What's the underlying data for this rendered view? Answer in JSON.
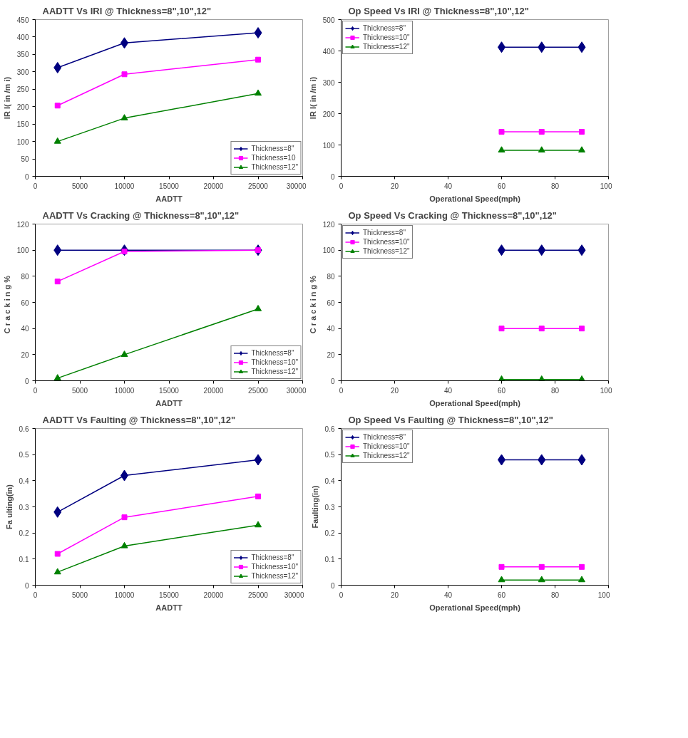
{
  "chart_data": [
    {
      "type": "line",
      "title": "AADTT Vs IRI @ Thickness=8\",10\",12\"",
      "xlabel": "AADTT",
      "ylabel": "IR I( in /m i)",
      "x": [
        2500,
        10000,
        25000
      ],
      "xlim": [
        0,
        30000
      ],
      "xticks": [
        0,
        5000,
        10000,
        15000,
        20000,
        25000,
        30000
      ],
      "ylim": [
        0,
        450
      ],
      "yticks": [
        0,
        50,
        100,
        150,
        200,
        250,
        300,
        350,
        400,
        450
      ],
      "grid": false,
      "legend": "bottom right",
      "series": [
        {
          "name": "Thickness=8\"",
          "color": "#000080",
          "marker": "diamond",
          "values": [
            312,
            383,
            412
          ]
        },
        {
          "name": "Thickness=10",
          "color": "#ff00ff",
          "marker": "square",
          "values": [
            203,
            293,
            335
          ]
        },
        {
          "name": "Thickness=12\"",
          "color": "#008000",
          "marker": "triangle",
          "values": [
            100,
            167,
            238
          ]
        }
      ]
    },
    {
      "type": "line",
      "title": "Op Speed Vs IRI @ Thickness=8\",10\",12\"",
      "xlabel": "Operational Speed(mph)",
      "ylabel": "IR I( in /m i)",
      "x": [
        60,
        75,
        90
      ],
      "xlim": [
        0,
        100
      ],
      "xticks": [
        0,
        20,
        40,
        60,
        80,
        100
      ],
      "ylim": [
        0,
        500
      ],
      "yticks": [
        0,
        100,
        200,
        300,
        400,
        500
      ],
      "grid": false,
      "legend": "top left",
      "series": [
        {
          "name": "Thickness=8\"",
          "color": "#000080",
          "marker": "diamond",
          "values": [
            412,
            412,
            412
          ]
        },
        {
          "name": "Thickness=10\"",
          "color": "#ff00ff",
          "marker": "square",
          "values": [
            142,
            142,
            142
          ]
        },
        {
          "name": "Thickness=12\"",
          "color": "#008000",
          "marker": "triangle",
          "values": [
            83,
            83,
            83
          ]
        }
      ]
    },
    {
      "type": "line",
      "title": "AADTT Vs Cracking @ Thickness=8\",10\",12\"",
      "xlabel": "AADTT",
      "ylabel": "C r a c k i n g   %",
      "x": [
        2500,
        10000,
        25000
      ],
      "xlim": [
        0,
        30000
      ],
      "xticks": [
        0,
        5000,
        10000,
        15000,
        20000,
        25000,
        30000
      ],
      "ylim": [
        0,
        120
      ],
      "yticks": [
        0,
        20,
        40,
        60,
        80,
        100,
        120
      ],
      "grid": false,
      "legend": "bottom right",
      "series": [
        {
          "name": "Thickness=8\"",
          "color": "#000080",
          "marker": "diamond",
          "values": [
            100,
            100,
            100
          ]
        },
        {
          "name": "Thickness=10\"",
          "color": "#ff00ff",
          "marker": "square",
          "values": [
            76,
            99,
            100
          ]
        },
        {
          "name": "Thickness=12\"",
          "color": "#008000",
          "marker": "triangle",
          "values": [
            2,
            20,
            55
          ]
        }
      ]
    },
    {
      "type": "line",
      "title": "Op Speed Vs Cracking @ Thickness=8\",10\",12\"",
      "xlabel": "Operational Speed(mph)",
      "ylabel": "C r a c k i n g   %",
      "x": [
        60,
        75,
        90
      ],
      "xlim": [
        0,
        100
      ],
      "xticks": [
        0,
        20,
        40,
        60,
        80,
        100
      ],
      "ylim": [
        0,
        120
      ],
      "yticks": [
        0,
        20,
        40,
        60,
        80,
        100,
        120
      ],
      "grid": false,
      "legend": "top left",
      "series": [
        {
          "name": "Thickness=8\"",
          "color": "#000080",
          "marker": "diamond",
          "values": [
            100,
            100,
            100
          ]
        },
        {
          "name": "Thickness=10\"",
          "color": "#ff00ff",
          "marker": "square",
          "values": [
            40,
            40,
            40
          ]
        },
        {
          "name": "Thickness=12\"",
          "color": "#008000",
          "marker": "triangle",
          "values": [
            1,
            1,
            1
          ]
        }
      ]
    },
    {
      "type": "line",
      "title": "AADTT Vs Faulting @ Thickness=8\",10\",12\"",
      "xlabel": "AADTT",
      "ylabel": "Fa ulting(in)",
      "x": [
        2500,
        10000,
        25000
      ],
      "xlim": [
        0,
        30000
      ],
      "xticks": [
        0,
        5000,
        10000,
        15000,
        20000,
        25000,
        30000
      ],
      "ylim": [
        0,
        0.6
      ],
      "yticks": [
        0,
        0.1,
        0.2,
        0.3,
        0.4,
        0.5,
        0.6
      ],
      "grid": false,
      "legend": "bottom right",
      "series": [
        {
          "name": "Thickness=8\"",
          "color": "#000080",
          "marker": "diamond",
          "values": [
            0.28,
            0.42,
            0.48
          ]
        },
        {
          "name": "Thickness=10\"",
          "color": "#ff00ff",
          "marker": "square",
          "values": [
            0.12,
            0.26,
            0.34
          ]
        },
        {
          "name": "Thickness=12\"",
          "color": "#008000",
          "marker": "triangle",
          "values": [
            0.05,
            0.15,
            0.23
          ]
        }
      ]
    },
    {
      "type": "line",
      "title": "Op Speed Vs Faulting @ Thickness=8\",10\",12\"",
      "xlabel": "Operational Speed(mph)",
      "ylabel": "Faulting(in)",
      "x": [
        60,
        75,
        90
      ],
      "xlim": [
        0,
        100
      ],
      "xticks": [
        0,
        20,
        40,
        60,
        80,
        100
      ],
      "ylim": [
        0,
        0.6
      ],
      "yticks": [
        0,
        0.1,
        0.2,
        0.3,
        0.4,
        0.5,
        0.6
      ],
      "grid": false,
      "legend": "top left",
      "series": [
        {
          "name": "Thickness=8\"",
          "color": "#000080",
          "marker": "diamond",
          "values": [
            0.48,
            0.48,
            0.48
          ]
        },
        {
          "name": "Thickness=10\"",
          "color": "#ff00ff",
          "marker": "square",
          "values": [
            0.07,
            0.07,
            0.07
          ]
        },
        {
          "name": "Thickness=12\"",
          "color": "#008000",
          "marker": "triangle",
          "values": [
            0.02,
            0.02,
            0.02
          ]
        }
      ]
    }
  ]
}
